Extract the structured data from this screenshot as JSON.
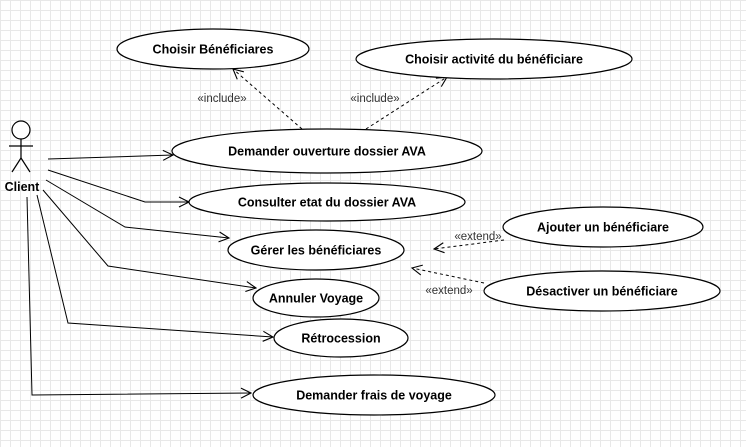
{
  "actor": {
    "name": "Client"
  },
  "use_cases": {
    "choisir_beneficiaires": "Choisir Bénéficiares",
    "choisir_activite": "Choisir activité du bénéficiare",
    "demander_ouverture": "Demander ouverture dossier AVA",
    "consulter_etat": "Consulter etat du dossier AVA",
    "ajouter_beneficiaire": "Ajouter un bénéficiare",
    "gerer_beneficiaires": "Gérer les bénéficiares",
    "desactiver_beneficiaire": "Désactiver un bénéficiare",
    "annuler_voyage": "Annuler Voyage",
    "retrocession": "Rétrocession",
    "demander_frais": "Demander frais de voyage"
  },
  "stereotypes": {
    "include": "«include»",
    "extend": "«extend»"
  }
}
